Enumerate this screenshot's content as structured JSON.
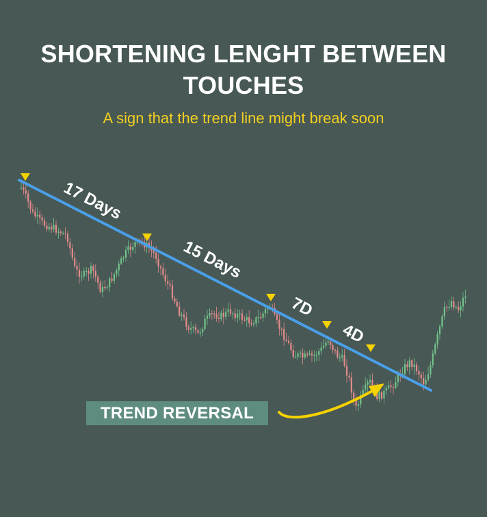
{
  "title_line1": "SHORTENING LENGHT BETWEEN",
  "title_line2": "TOUCHES",
  "subtitle": "A sign that the trend line might break soon",
  "badge": "TREND REVERSAL",
  "colors": {
    "background": "#475855",
    "trend_line": "#4a9fe8",
    "marker": "#f5d200",
    "arrow": "#f5d200",
    "candle_up": "#74c38b",
    "candle_down": "#e58b8b",
    "badge": "#5e8c81",
    "subtitle": "#f2cf1f"
  },
  "chart_data": {
    "type": "candlestick",
    "trend": "descending trend line",
    "touch_labels": [
      "17 Days",
      "15 Days",
      "7D",
      "4D"
    ],
    "touch_gaps_days": [
      17,
      15,
      7,
      4
    ],
    "touch_markers": 5,
    "annotation": "TREND REVERSAL",
    "icons": [
      "marker-triangle-icon",
      "curved-arrow-icon"
    ]
  }
}
